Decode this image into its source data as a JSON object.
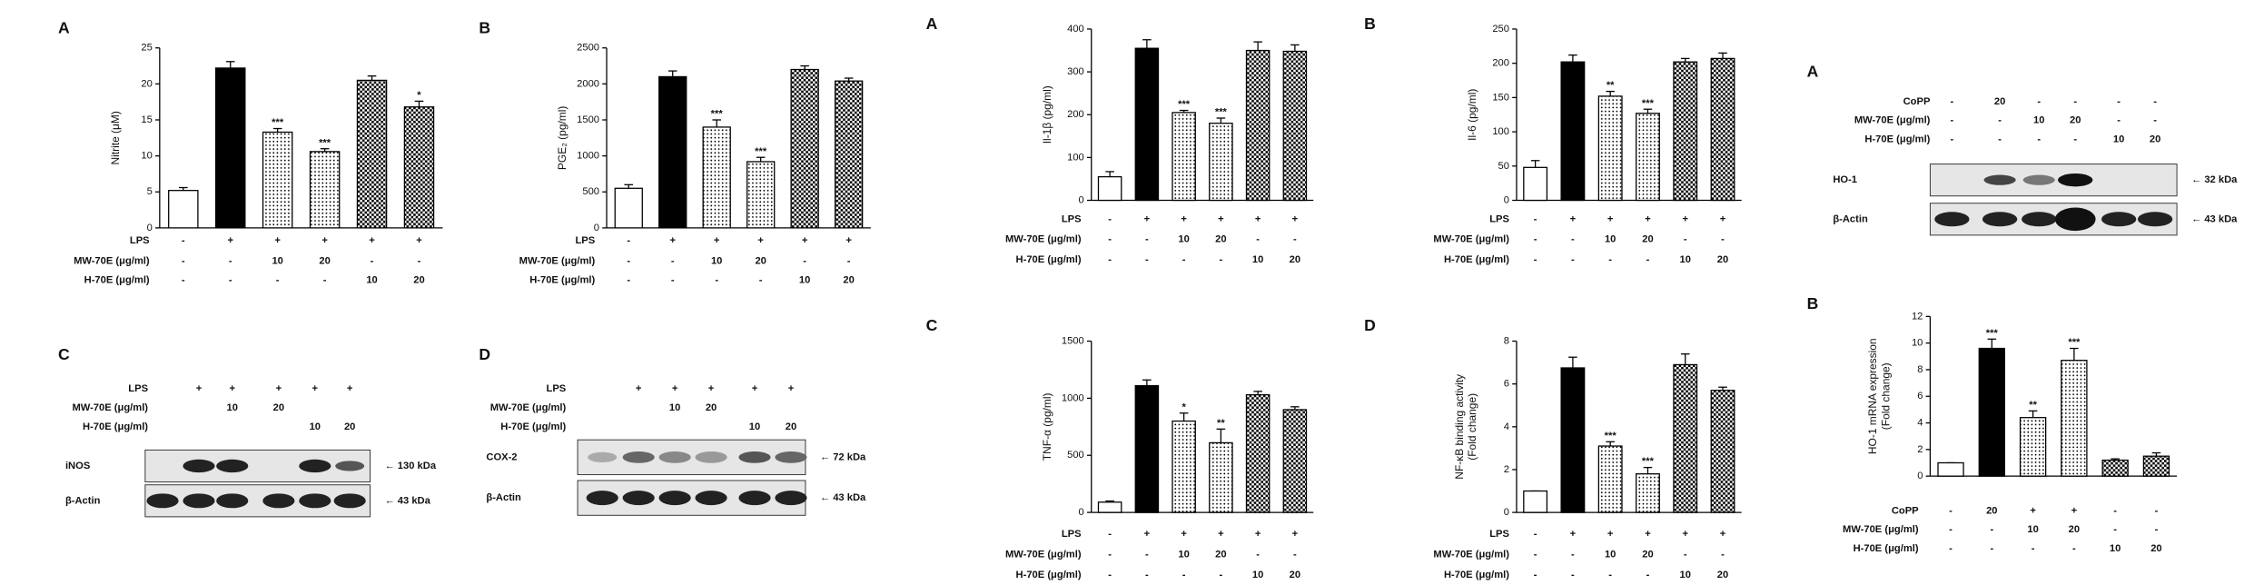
{
  "chart_data": [
    {
      "type": "bar",
      "panel": "A",
      "ylabel": [
        "Nitrite (μM)"
      ],
      "values": [
        5.2,
        22.2,
        13.3,
        10.6,
        20.5,
        16.8
      ],
      "errors": [
        0.4,
        0.9,
        0.5,
        0.4,
        0.6,
        0.8
      ],
      "significance": [
        null,
        null,
        "***",
        "***",
        null,
        "*"
      ],
      "fills": [
        "white",
        "black",
        "dots",
        "dots",
        "checker",
        "checker"
      ],
      "ylim": [
        0,
        25
      ],
      "yticks": [
        0,
        5,
        10,
        15,
        20,
        25
      ],
      "conditions": [
        {
          "label": "LPS",
          "marks": [
            "-",
            "+",
            "+",
            "+",
            "+",
            "+"
          ]
        },
        {
          "label": "MW-70E (μg/ml)",
          "marks": [
            "-",
            "-",
            "10",
            "20",
            "-",
            "-"
          ]
        },
        {
          "label": "H-70E (μg/ml)",
          "marks": [
            "-",
            "-",
            "-",
            "-",
            "10",
            "20"
          ]
        }
      ]
    },
    {
      "type": "bar",
      "panel": "B",
      "ylabel": [
        "PGE₂ (pg/ml)"
      ],
      "values": [
        550,
        2100,
        1400,
        920,
        2200,
        2040
      ],
      "errors": [
        50,
        80,
        100,
        60,
        50,
        40
      ],
      "significance": [
        null,
        null,
        "***",
        "***",
        null,
        null
      ],
      "fills": [
        "white",
        "black",
        "dots",
        "dots",
        "checker",
        "checker"
      ],
      "ylim": [
        0,
        2500
      ],
      "yticks": [
        0,
        500,
        1000,
        1500,
        2000,
        2500
      ],
      "conditions": [
        {
          "label": "LPS",
          "marks": [
            "-",
            "+",
            "+",
            "+",
            "+",
            "+"
          ]
        },
        {
          "label": "MW-70E (μg/ml)",
          "marks": [
            "-",
            "-",
            "10",
            "20",
            "-",
            "-"
          ]
        },
        {
          "label": "H-70E (μg/ml)",
          "marks": [
            "-",
            "-",
            "-",
            "-",
            "10",
            "20"
          ]
        }
      ]
    },
    {
      "type": "bar",
      "panel": "A",
      "ylabel": [
        "Il-1β (pg/ml)"
      ],
      "values": [
        55,
        355,
        205,
        180,
        350,
        348
      ],
      "errors": [
        12,
        20,
        5,
        12,
        20,
        15
      ],
      "significance": [
        null,
        null,
        "***",
        "***",
        null,
        null
      ],
      "fills": [
        "white",
        "black",
        "dots",
        "dots",
        "checker",
        "checker"
      ],
      "ylim": [
        0,
        400
      ],
      "yticks": [
        0,
        100,
        200,
        300,
        400
      ],
      "conditions": [
        {
          "label": "LPS",
          "marks": [
            "-",
            "+",
            "+",
            "+",
            "+",
            "+"
          ]
        },
        {
          "label": "MW-70E (μg/ml)",
          "marks": [
            "-",
            "-",
            "10",
            "20",
            "-",
            "-"
          ]
        },
        {
          "label": "H-70E (μg/ml)",
          "marks": [
            "-",
            "-",
            "-",
            "-",
            "10",
            "20"
          ]
        }
      ]
    },
    {
      "type": "bar",
      "panel": "B",
      "ylabel": [
        "Il-6 (pg/ml)"
      ],
      "values": [
        48,
        202,
        152,
        127,
        202,
        207
      ],
      "errors": [
        10,
        10,
        7,
        6,
        5,
        8
      ],
      "significance": [
        null,
        null,
        "**",
        "***",
        null,
        null
      ],
      "fills": [
        "white",
        "black",
        "dots",
        "dots",
        "checker",
        "checker"
      ],
      "ylim": [
        0,
        250
      ],
      "yticks": [
        0,
        50,
        100,
        150,
        200,
        250
      ],
      "conditions": [
        {
          "label": "LPS",
          "marks": [
            "-",
            "+",
            "+",
            "+",
            "+",
            "+"
          ]
        },
        {
          "label": "MW-70E (μg/ml)",
          "marks": [
            "-",
            "-",
            "10",
            "20",
            "-",
            "-"
          ]
        },
        {
          "label": "H-70E (μg/ml)",
          "marks": [
            "-",
            "-",
            "-",
            "-",
            "10",
            "20"
          ]
        }
      ]
    },
    {
      "type": "bar",
      "panel": "C",
      "ylabel": [
        "TNF-α (pg/ml)"
      ],
      "values": [
        90,
        1110,
        800,
        610,
        1030,
        900
      ],
      "errors": [
        10,
        50,
        70,
        120,
        30,
        25
      ],
      "significance": [
        null,
        null,
        "*",
        "**",
        null,
        null
      ],
      "fills": [
        "white",
        "black",
        "dots",
        "dots",
        "checker",
        "checker"
      ],
      "ylim": [
        0,
        1500
      ],
      "yticks": [
        0,
        500,
        1000,
        1500
      ],
      "conditions": [
        {
          "label": "LPS",
          "marks": [
            "-",
            "+",
            "+",
            "+",
            "+",
            "+"
          ]
        },
        {
          "label": "MW-70E (μg/ml)",
          "marks": [
            "-",
            "-",
            "10",
            "20",
            "-",
            "-"
          ]
        },
        {
          "label": "H-70E (μg/ml)",
          "marks": [
            "-",
            "-",
            "-",
            "-",
            "10",
            "20"
          ]
        }
      ]
    },
    {
      "type": "bar",
      "panel": "D",
      "ylabel": [
        "NF-κB binding activity",
        "(Fold change)"
      ],
      "values": [
        1.0,
        6.75,
        3.1,
        1.8,
        6.9,
        5.7
      ],
      "errors": [
        0,
        0.5,
        0.2,
        0.3,
        0.5,
        0.15
      ],
      "significance": [
        null,
        null,
        "***",
        "***",
        null,
        null
      ],
      "fills": [
        "white",
        "black",
        "dots",
        "dots",
        "checker",
        "checker"
      ],
      "ylim": [
        0,
        8
      ],
      "yticks": [
        0,
        2,
        4,
        6,
        8
      ],
      "conditions": [
        {
          "label": "LPS",
          "marks": [
            "-",
            "+",
            "+",
            "+",
            "+",
            "+"
          ]
        },
        {
          "label": "MW-70E (μg/ml)",
          "marks": [
            "-",
            "-",
            "10",
            "20",
            "-",
            "-"
          ]
        },
        {
          "label": "H-70E (μg/ml)",
          "marks": [
            "-",
            "-",
            "-",
            "-",
            "10",
            "20"
          ]
        }
      ]
    },
    {
      "type": "bar",
      "panel": "B",
      "ylabel": [
        "HO-1 mRNA expression",
        "(Fold change)"
      ],
      "values": [
        1.0,
        9.6,
        4.4,
        8.7,
        1.2,
        1.5
      ],
      "errors": [
        0,
        0.7,
        0.5,
        0.9,
        0.1,
        0.25
      ],
      "significance": [
        null,
        "***",
        "**",
        "***",
        null,
        null
      ],
      "fills": [
        "white",
        "black",
        "dots",
        "dots",
        "checker",
        "checker"
      ],
      "ylim": [
        0,
        12
      ],
      "yticks": [
        0,
        2,
        4,
        6,
        8,
        10,
        12
      ],
      "conditions": [
        {
          "label": "CoPP",
          "marks": [
            "-",
            "20",
            "+",
            "+",
            "-",
            "-"
          ]
        },
        {
          "label": "MW-70E (μg/ml)",
          "marks": [
            "-",
            "-",
            "10",
            "20",
            "-",
            "-"
          ]
        },
        {
          "label": "H-70E (μg/ml)",
          "marks": [
            "-",
            "-",
            "-",
            "-",
            "10",
            "20"
          ]
        }
      ]
    }
  ],
  "blots": [
    {
      "panel": "C",
      "conditions": [
        {
          "label": "LPS",
          "marks": [
            null,
            "+",
            "+",
            "+",
            "+",
            "+"
          ]
        },
        {
          "label": "MW-70E (μg/ml)",
          "marks": [
            null,
            null,
            "10",
            "20",
            null,
            null
          ]
        },
        {
          "label": "H-70E (μg/ml)",
          "marks": [
            null,
            null,
            null,
            null,
            "10",
            "20"
          ]
        }
      ],
      "rows": [
        {
          "label": "iNOS",
          "size": "← 130 kDa"
        },
        {
          "label": "β-Actin",
          "size": "← 43 kDa"
        }
      ]
    },
    {
      "panel": "D",
      "conditions": [
        {
          "label": "LPS",
          "marks": [
            null,
            "+",
            "+",
            "+",
            "+",
            "+"
          ]
        },
        {
          "label": "MW-70E (μg/ml)",
          "marks": [
            null,
            null,
            "10",
            "20",
            null,
            null
          ]
        },
        {
          "label": "H-70E (μg/ml)",
          "marks": [
            null,
            null,
            null,
            null,
            "10",
            "20"
          ]
        }
      ],
      "rows": [
        {
          "label": "COX-2",
          "size": "← 72 kDa"
        },
        {
          "label": "β-Actin",
          "size": "← 43 kDa"
        }
      ]
    },
    {
      "panel": "A",
      "conditions": [
        {
          "label": "CoPP",
          "marks": [
            "-",
            "20",
            "-",
            "-",
            "-",
            "-"
          ]
        },
        {
          "label": "MW-70E (μg/ml)",
          "marks": [
            "-",
            "-",
            "10",
            "20",
            "-",
            "-"
          ]
        },
        {
          "label": "H-70E (μg/ml)",
          "marks": [
            "-",
            "-",
            "-",
            "-",
            "10",
            "20"
          ]
        }
      ],
      "rows": [
        {
          "label": "HO-1",
          "size": "← 32 kDa"
        },
        {
          "label": "β-Actin",
          "size": "← 43 kDa"
        }
      ]
    }
  ]
}
